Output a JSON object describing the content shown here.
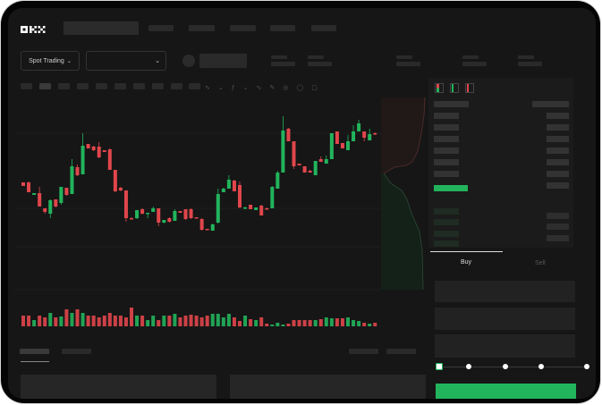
{
  "brand": {
    "logo_text": "OKX"
  },
  "market_selector": {
    "mode_label": "Spot Trading"
  },
  "order_form": {
    "tabs": [
      {
        "label": "Buy",
        "active": true
      },
      {
        "label": "Sell",
        "active": false
      }
    ],
    "slider_percent": 0
  },
  "colors": {
    "up": "#22b45c",
    "down": "#e0464b",
    "background": "#161616",
    "panel": "#1b1b1b"
  },
  "icons": [
    "chevron-down-icon",
    "line-tool-icon",
    "pencil-icon",
    "magnet-icon",
    "eye-icon",
    "expand-icon",
    "orderbook-both-icon",
    "orderbook-bids-icon",
    "orderbook-asks-icon"
  ],
  "chart_data": {
    "type": "candlestick",
    "candles": [
      [
        97,
        93,
        97,
        93
      ],
      [
        97,
        86,
        98,
        86
      ],
      [
        83,
        85,
        85,
        83
      ],
      [
        85,
        70,
        92,
        70
      ],
      [
        68,
        64,
        68,
        62
      ],
      [
        62,
        77,
        78,
        57
      ],
      [
        78,
        70,
        78,
        69
      ],
      [
        74,
        92,
        92,
        72
      ],
      [
        91,
        83,
        91,
        82
      ],
      [
        84,
        115,
        123,
        84
      ],
      [
        114,
        105,
        117,
        104
      ],
      [
        106,
        138,
        152,
        106
      ],
      [
        140,
        135,
        140,
        135
      ],
      [
        137,
        133,
        138,
        132
      ],
      [
        137,
        125,
        142,
        124
      ],
      [
        133,
        131,
        133,
        131
      ],
      [
        134,
        111,
        135,
        111
      ],
      [
        111,
        87,
        111,
        86
      ],
      [
        91,
        88,
        92,
        87
      ],
      [
        88,
        57,
        88,
        53
      ],
      [
        57,
        56,
        58,
        56
      ],
      [
        57,
        66,
        66,
        56
      ],
      [
        67,
        62,
        68,
        61
      ],
      [
        62,
        63,
        63,
        57
      ],
      [
        64,
        68,
        70,
        64
      ],
      [
        68,
        52,
        68,
        48
      ],
      [
        52,
        55,
        55,
        51
      ],
      [
        57,
        53,
        58,
        52
      ],
      [
        54,
        65,
        67,
        54
      ],
      [
        65,
        63,
        65,
        63
      ],
      [
        67,
        56,
        67,
        55
      ],
      [
        67,
        57,
        68,
        56
      ],
      [
        58,
        57,
        58,
        57
      ],
      [
        56,
        44,
        57,
        43
      ],
      [
        45,
        44,
        45,
        44
      ],
      [
        43,
        50,
        51,
        43
      ],
      [
        52,
        84,
        90,
        51
      ],
      [
        86,
        90,
        91,
        86
      ],
      [
        90,
        100,
        105,
        90
      ],
      [
        99,
        87,
        100,
        87
      ],
      [
        94,
        69,
        98,
        68
      ],
      [
        68,
        69,
        70,
        67
      ],
      [
        72,
        67,
        72,
        67
      ],
      [
        66,
        69,
        69,
        66
      ],
      [
        71,
        60,
        72,
        60
      ],
      [
        68,
        67,
        69,
        67
      ],
      [
        68,
        92,
        93,
        68
      ],
      [
        90,
        108,
        110,
        90
      ],
      [
        108,
        155,
        171,
        108
      ],
      [
        157,
        143,
        158,
        143
      ],
      [
        143,
        115,
        143,
        112
      ],
      [
        118,
        116,
        118,
        116
      ],
      [
        115,
        108,
        115,
        108
      ],
      [
        110,
        108,
        111,
        108
      ],
      [
        105,
        121,
        121,
        105
      ],
      [
        123,
        120,
        126,
        120
      ],
      [
        118,
        123,
        127,
        118
      ],
      [
        123,
        152,
        152,
        123
      ],
      [
        154,
        140,
        154,
        140
      ],
      [
        141,
        135,
        141,
        135
      ],
      [
        133,
        143,
        150,
        133
      ],
      [
        143,
        154,
        161,
        143
      ],
      [
        154,
        163,
        167,
        154
      ],
      [
        154,
        147,
        154,
        143
      ],
      [
        144,
        151,
        157,
        144
      ],
      [
        152,
        151,
        153,
        150
      ]
    ],
    "candle_fields": [
      "open",
      "close",
      "high",
      "low"
    ],
    "volume": [
      12,
      12,
      7,
      12,
      10,
      15,
      10,
      11,
      19,
      15,
      19,
      15,
      12,
      12,
      10,
      12,
      15,
      12,
      12,
      10,
      21,
      12,
      12,
      7,
      12,
      7,
      12,
      12,
      14,
      10,
      12,
      13,
      12,
      10,
      12,
      14,
      14,
      10,
      14,
      10,
      6,
      12,
      8,
      7,
      10,
      3,
      2,
      4,
      2,
      3,
      7,
      7,
      7,
      7,
      7,
      8,
      10,
      9,
      9,
      9,
      10,
      7,
      6,
      4,
      3,
      4
    ],
    "grid": true
  }
}
